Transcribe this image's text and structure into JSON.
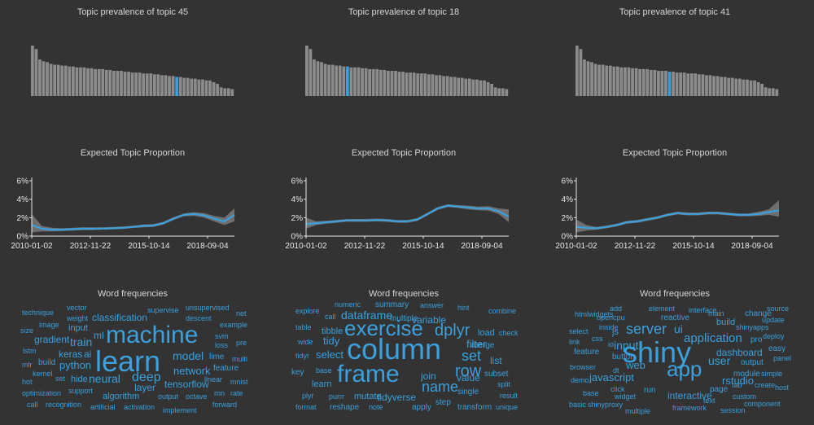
{
  "colors": {
    "background": "#333333",
    "bar": "#8c8c8c",
    "bar_highlight": "#3ba0dc",
    "line": "#3ba0dc",
    "band": "#6f6f6f",
    "word": "#3ba0dc"
  },
  "chart_data": [
    {
      "type": "bar",
      "title": "Topic prevalence of topic 45",
      "values": [
        5.8,
        5.4,
        4.2,
        4.0,
        3.9,
        3.7,
        3.6,
        3.6,
        3.5,
        3.5,
        3.4,
        3.4,
        3.3,
        3.3,
        3.3,
        3.2,
        3.2,
        3.1,
        3.1,
        3.1,
        3.0,
        3.0,
        2.9,
        2.9,
        2.9,
        2.8,
        2.8,
        2.7,
        2.7,
        2.7,
        2.6,
        2.6,
        2.6,
        2.5,
        2.5,
        2.4,
        2.4,
        2.3,
        2.3,
        2.2,
        2.2,
        2.1,
        2.1,
        2.0,
        2.0,
        1.9,
        1.9,
        1.8,
        1.8,
        1.6,
        1.4,
        1.0,
        0.9,
        0.9,
        0.8
      ],
      "highlight_index": 39
    },
    {
      "type": "bar",
      "title": "Topic prevalence of topic 18",
      "values": [
        5.8,
        5.4,
        4.2,
        4.0,
        3.9,
        3.7,
        3.6,
        3.6,
        3.5,
        3.5,
        3.4,
        3.4,
        3.3,
        3.3,
        3.3,
        3.2,
        3.2,
        3.1,
        3.1,
        3.1,
        3.0,
        3.0,
        2.9,
        2.9,
        2.9,
        2.8,
        2.8,
        2.7,
        2.7,
        2.7,
        2.6,
        2.6,
        2.6,
        2.5,
        2.5,
        2.4,
        2.4,
        2.3,
        2.3,
        2.2,
        2.2,
        2.1,
        2.1,
        2.0,
        2.0,
        1.9,
        1.9,
        1.8,
        1.8,
        1.6,
        1.4,
        1.0,
        0.9,
        0.9,
        0.8
      ],
      "highlight_index": 11
    },
    {
      "type": "bar",
      "title": "Topic prevalence of topic 41",
      "values": [
        5.8,
        5.4,
        4.2,
        4.0,
        3.9,
        3.7,
        3.6,
        3.6,
        3.5,
        3.5,
        3.4,
        3.4,
        3.3,
        3.3,
        3.3,
        3.2,
        3.2,
        3.1,
        3.1,
        3.1,
        3.0,
        3.0,
        2.9,
        2.9,
        2.9,
        2.8,
        2.8,
        2.7,
        2.7,
        2.7,
        2.6,
        2.6,
        2.6,
        2.5,
        2.5,
        2.4,
        2.4,
        2.3,
        2.3,
        2.2,
        2.2,
        2.1,
        2.1,
        2.0,
        2.0,
        1.9,
        1.9,
        1.8,
        1.8,
        1.6,
        1.4,
        1.0,
        0.9,
        0.9,
        0.8
      ],
      "highlight_index": 25
    },
    {
      "type": "area",
      "title": "Expected Topic Proportion",
      "x": [
        "2010-01-02",
        "2010-07-01",
        "2011-01-01",
        "2011-07-01",
        "2012-01-01",
        "2012-07-01",
        "2013-01-01",
        "2013-07-01",
        "2014-01-01",
        "2014-07-01",
        "2015-01-01",
        "2015-07-01",
        "2016-01-01",
        "2016-07-01",
        "2017-01-01",
        "2017-07-01",
        "2018-01-01",
        "2018-07-01",
        "2019-01-01",
        "2019-07-01",
        "2020-01-01"
      ],
      "y": [
        1.2,
        0.8,
        0.7,
        0.7,
        0.75,
        0.8,
        0.8,
        0.82,
        0.85,
        0.9,
        1.0,
        1.1,
        1.15,
        1.4,
        1.9,
        2.3,
        2.4,
        2.25,
        1.9,
        1.6,
        2.3
      ],
      "lower": [
        0.4,
        0.5,
        0.5,
        0.55,
        0.6,
        0.65,
        0.65,
        0.7,
        0.72,
        0.78,
        0.88,
        0.95,
        1.0,
        1.25,
        1.75,
        2.15,
        2.2,
        2.0,
        1.6,
        1.2,
        1.6
      ],
      "upper": [
        2.4,
        1.1,
        0.9,
        0.85,
        0.9,
        0.95,
        0.95,
        0.95,
        1.0,
        1.05,
        1.12,
        1.25,
        1.3,
        1.55,
        2.05,
        2.45,
        2.6,
        2.5,
        2.2,
        2.0,
        3.0
      ],
      "ylim": [
        0,
        6
      ],
      "yticks": [
        "0%",
        "2%",
        "4%",
        "6%"
      ],
      "xticks": [
        "2010-01-02",
        "2012-11-22",
        "2015-10-14",
        "2018-09-04"
      ]
    },
    {
      "type": "area",
      "title": "Expected Topic Proportion",
      "x": [
        "2010-01-02",
        "2010-07-01",
        "2011-01-01",
        "2011-07-01",
        "2012-01-01",
        "2012-07-01",
        "2013-01-01",
        "2013-07-01",
        "2014-01-01",
        "2014-07-01",
        "2015-01-01",
        "2015-07-01",
        "2016-01-01",
        "2016-07-01",
        "2017-01-01",
        "2017-07-01",
        "2018-01-01",
        "2018-07-01",
        "2019-01-01",
        "2019-07-01",
        "2020-01-01"
      ],
      "y": [
        1.3,
        1.4,
        1.5,
        1.6,
        1.7,
        1.7,
        1.7,
        1.75,
        1.7,
        1.6,
        1.6,
        1.8,
        2.4,
        3.0,
        3.3,
        3.2,
        3.1,
        3.0,
        3.0,
        2.7,
        2.1
      ],
      "lower": [
        0.8,
        1.2,
        1.35,
        1.45,
        1.55,
        1.55,
        1.55,
        1.6,
        1.55,
        1.45,
        1.45,
        1.65,
        2.25,
        2.85,
        3.15,
        3.05,
        2.9,
        2.8,
        2.75,
        2.4,
        1.5
      ],
      "upper": [
        2.0,
        1.6,
        1.65,
        1.75,
        1.85,
        1.85,
        1.85,
        1.9,
        1.85,
        1.75,
        1.75,
        1.95,
        2.55,
        3.15,
        3.45,
        3.35,
        3.3,
        3.2,
        3.25,
        3.0,
        2.9
      ],
      "ylim": [
        0,
        6
      ],
      "yticks": [
        "0%",
        "2%",
        "4%",
        "6%"
      ],
      "xticks": [
        "2010-01-02",
        "2012-11-22",
        "2015-10-14",
        "2018-09-04"
      ]
    },
    {
      "type": "area",
      "title": "Expected Topic Proportion",
      "x": [
        "2010-01-02",
        "2010-07-01",
        "2011-01-01",
        "2011-07-01",
        "2012-01-01",
        "2012-07-01",
        "2013-01-01",
        "2013-07-01",
        "2014-01-01",
        "2014-07-01",
        "2015-01-01",
        "2015-07-01",
        "2016-01-01",
        "2016-07-01",
        "2017-01-01",
        "2017-07-01",
        "2018-01-01",
        "2018-07-01",
        "2019-01-01",
        "2019-07-01",
        "2020-01-01"
      ],
      "y": [
        1.0,
        0.9,
        0.85,
        1.0,
        1.2,
        1.5,
        1.6,
        1.8,
        2.0,
        2.3,
        2.5,
        2.4,
        2.4,
        2.5,
        2.5,
        2.4,
        2.3,
        2.3,
        2.4,
        2.6,
        2.8
      ],
      "lower": [
        0.4,
        0.6,
        0.7,
        0.85,
        1.05,
        1.35,
        1.45,
        1.65,
        1.85,
        2.15,
        2.35,
        2.25,
        2.25,
        2.35,
        2.35,
        2.25,
        2.15,
        2.15,
        2.2,
        2.3,
        2.1
      ],
      "upper": [
        1.8,
        1.2,
        1.0,
        1.15,
        1.35,
        1.65,
        1.75,
        1.95,
        2.15,
        2.45,
        2.65,
        2.55,
        2.55,
        2.65,
        2.65,
        2.55,
        2.45,
        2.45,
        2.65,
        2.9,
        3.9
      ],
      "ylim": [
        0,
        6
      ],
      "yticks": [
        "0%",
        "2%",
        "4%",
        "6%"
      ],
      "xticks": [
        "2010-01-02",
        "2012-11-22",
        "2015-10-14",
        "2018-09-04"
      ]
    }
  ],
  "wordclouds": [
    {
      "title": "Word frequencies",
      "words": [
        {
          "t": "technique",
          "s": 9
        },
        {
          "t": "vector",
          "s": 9
        },
        {
          "t": "supervise",
          "s": 9
        },
        {
          "t": "unsupervised",
          "s": 9
        },
        {
          "t": "net",
          "s": 9
        },
        {
          "t": "weight",
          "s": 9
        },
        {
          "t": "classification",
          "s": 12
        },
        {
          "t": "descent",
          "s": 9
        },
        {
          "t": "image",
          "s": 9
        },
        {
          "t": "size",
          "s": 9
        },
        {
          "t": "input",
          "s": 11
        },
        {
          "t": "example",
          "s": 9
        },
        {
          "t": "gradient",
          "s": 12
        },
        {
          "t": "train",
          "s": 14
        },
        {
          "t": "ml",
          "s": 12
        },
        {
          "t": "machine",
          "s": 30
        },
        {
          "t": "svm",
          "s": 9
        },
        {
          "t": "loss",
          "s": 9
        },
        {
          "t": "pre",
          "s": 9
        },
        {
          "t": "lstm",
          "s": 9
        },
        {
          "t": "keras",
          "s": 12
        },
        {
          "t": "ai",
          "s": 12
        },
        {
          "t": "learn",
          "s": 36
        },
        {
          "t": "model",
          "s": 14
        },
        {
          "t": "lime",
          "s": 10
        },
        {
          "t": "multi",
          "s": 9
        },
        {
          "t": "mlr",
          "s": 9
        },
        {
          "t": "build",
          "s": 10
        },
        {
          "t": "python",
          "s": 13
        },
        {
          "t": "network",
          "s": 13
        },
        {
          "t": "feature",
          "s": 10
        },
        {
          "t": "kernel",
          "s": 9
        },
        {
          "t": "hot",
          "s": 9
        },
        {
          "t": "set",
          "s": 9
        },
        {
          "t": "hide",
          "s": 11
        },
        {
          "t": "neural",
          "s": 14
        },
        {
          "t": "deep",
          "s": 16
        },
        {
          "t": "linear",
          "s": 9
        },
        {
          "t": "mnist",
          "s": 9
        },
        {
          "t": "tensorflow",
          "s": 12
        },
        {
          "t": "layer",
          "s": 12
        },
        {
          "t": "optimization",
          "s": 9
        },
        {
          "t": "support",
          "s": 9
        },
        {
          "t": "algorithm",
          "s": 11
        },
        {
          "t": "output",
          "s": 9
        },
        {
          "t": "octave",
          "s": 9
        },
        {
          "t": "rnn",
          "s": 9
        },
        {
          "t": "rate",
          "s": 9
        },
        {
          "t": "call",
          "s": 9
        },
        {
          "t": "recognition",
          "s": 9
        },
        {
          "t": "artificial",
          "s": 9
        },
        {
          "t": "activation",
          "s": 9
        },
        {
          "t": "forward",
          "s": 9
        },
        {
          "t": "implement",
          "s": 9
        }
      ]
    },
    {
      "title": "Word frequencies",
      "words": [
        {
          "t": "numeric",
          "s": 9
        },
        {
          "t": "summary",
          "s": 10
        },
        {
          "t": "answer",
          "s": 9
        },
        {
          "t": "hint",
          "s": 9
        },
        {
          "t": "explore",
          "s": 9
        },
        {
          "t": "call",
          "s": 9
        },
        {
          "t": "dataframe",
          "s": 14
        },
        {
          "t": "multiple",
          "s": 10
        },
        {
          "t": "combine",
          "s": 9
        },
        {
          "t": "variable",
          "s": 12
        },
        {
          "t": "table",
          "s": 9
        },
        {
          "t": "tibble",
          "s": 11
        },
        {
          "t": "exercise",
          "s": 26
        },
        {
          "t": "dplyr",
          "s": 20
        },
        {
          "t": "load",
          "s": 11
        },
        {
          "t": "check",
          "s": 9
        },
        {
          "t": "wide",
          "s": 9
        },
        {
          "t": "tidy",
          "s": 13
        },
        {
          "t": "filter",
          "s": 13
        },
        {
          "t": "merge",
          "s": 10
        },
        {
          "t": "tidyr",
          "s": 9
        },
        {
          "t": "select",
          "s": 13
        },
        {
          "t": "column",
          "s": 36
        },
        {
          "t": "set",
          "s": 18
        },
        {
          "t": "list",
          "s": 12
        },
        {
          "t": "key",
          "s": 10
        },
        {
          "t": "base",
          "s": 9
        },
        {
          "t": "join",
          "s": 12
        },
        {
          "t": "row",
          "s": 20
        },
        {
          "t": "subset",
          "s": 10
        },
        {
          "t": "learn",
          "s": 11
        },
        {
          "t": "frame",
          "s": 30
        },
        {
          "t": "value",
          "s": 12
        },
        {
          "t": "split",
          "s": 9
        },
        {
          "t": "name",
          "s": 18
        },
        {
          "t": "plyr",
          "s": 9
        },
        {
          "t": "purrr",
          "s": 9
        },
        {
          "t": "mutate",
          "s": 11
        },
        {
          "t": "tidyverse",
          "s": 12
        },
        {
          "t": "single",
          "s": 10
        },
        {
          "t": "result",
          "s": 9
        },
        {
          "t": "format",
          "s": 9
        },
        {
          "t": "reshape",
          "s": 10
        },
        {
          "t": "note",
          "s": 9
        },
        {
          "t": "apply",
          "s": 10
        },
        {
          "t": "step",
          "s": 10
        },
        {
          "t": "transform",
          "s": 10
        },
        {
          "t": "unique",
          "s": 9
        }
      ]
    },
    {
      "title": "Word frequencies",
      "words": [
        {
          "t": "add",
          "s": 9
        },
        {
          "t": "element",
          "s": 9
        },
        {
          "t": "interface",
          "s": 9
        },
        {
          "t": "source",
          "s": 9
        },
        {
          "t": "htmlwidgets",
          "s": 9
        },
        {
          "t": "opencpu",
          "s": 9
        },
        {
          "t": "reactive",
          "s": 10
        },
        {
          "t": "main",
          "s": 9
        },
        {
          "t": "change",
          "s": 10
        },
        {
          "t": "update",
          "s": 9
        },
        {
          "t": "build",
          "s": 11
        },
        {
          "t": "shinyapps",
          "s": 9
        },
        {
          "t": "select",
          "s": 9
        },
        {
          "t": "inside",
          "s": 9
        },
        {
          "t": "js",
          "s": 11
        },
        {
          "t": "server",
          "s": 18
        },
        {
          "t": "ui",
          "s": 14
        },
        {
          "t": "deploy",
          "s": 9
        },
        {
          "t": "link",
          "s": 9
        },
        {
          "t": "css",
          "s": 9
        },
        {
          "t": "application",
          "s": 15
        },
        {
          "t": "pro",
          "s": 10
        },
        {
          "t": "io",
          "s": 9
        },
        {
          "t": "input",
          "s": 14
        },
        {
          "t": "feature",
          "s": 10
        },
        {
          "t": "easy",
          "s": 10
        },
        {
          "t": "button",
          "s": 10
        },
        {
          "t": "dashboard",
          "s": 12
        },
        {
          "t": "panel",
          "s": 9
        },
        {
          "t": "shiny",
          "s": 36
        },
        {
          "t": "web",
          "s": 13
        },
        {
          "t": "user",
          "s": 14
        },
        {
          "t": "browser",
          "s": 9
        },
        {
          "t": "output",
          "s": 10
        },
        {
          "t": "dt",
          "s": 9
        },
        {
          "t": "host",
          "s": 9
        },
        {
          "t": "module",
          "s": 10
        },
        {
          "t": "simple",
          "s": 9
        },
        {
          "t": "javascript",
          "s": 13
        },
        {
          "t": "app",
          "s": 26
        },
        {
          "t": "demo",
          "s": 9
        },
        {
          "t": "rstudio",
          "s": 13
        },
        {
          "t": "click",
          "s": 9
        },
        {
          "t": "run",
          "s": 10
        },
        {
          "t": "tab",
          "s": 9
        },
        {
          "t": "create",
          "s": 9
        },
        {
          "t": "base",
          "s": 9
        },
        {
          "t": "interactive",
          "s": 12
        },
        {
          "t": "widget",
          "s": 9
        },
        {
          "t": "page",
          "s": 10
        },
        {
          "t": "custom",
          "s": 9
        },
        {
          "t": "text",
          "s": 9
        },
        {
          "t": "component",
          "s": 9
        },
        {
          "t": "basic",
          "s": 9
        },
        {
          "t": "shinyproxy",
          "s": 9
        },
        {
          "t": "framework",
          "s": 9
        },
        {
          "t": "multiple",
          "s": 9
        },
        {
          "t": "session",
          "s": 9
        }
      ]
    }
  ]
}
